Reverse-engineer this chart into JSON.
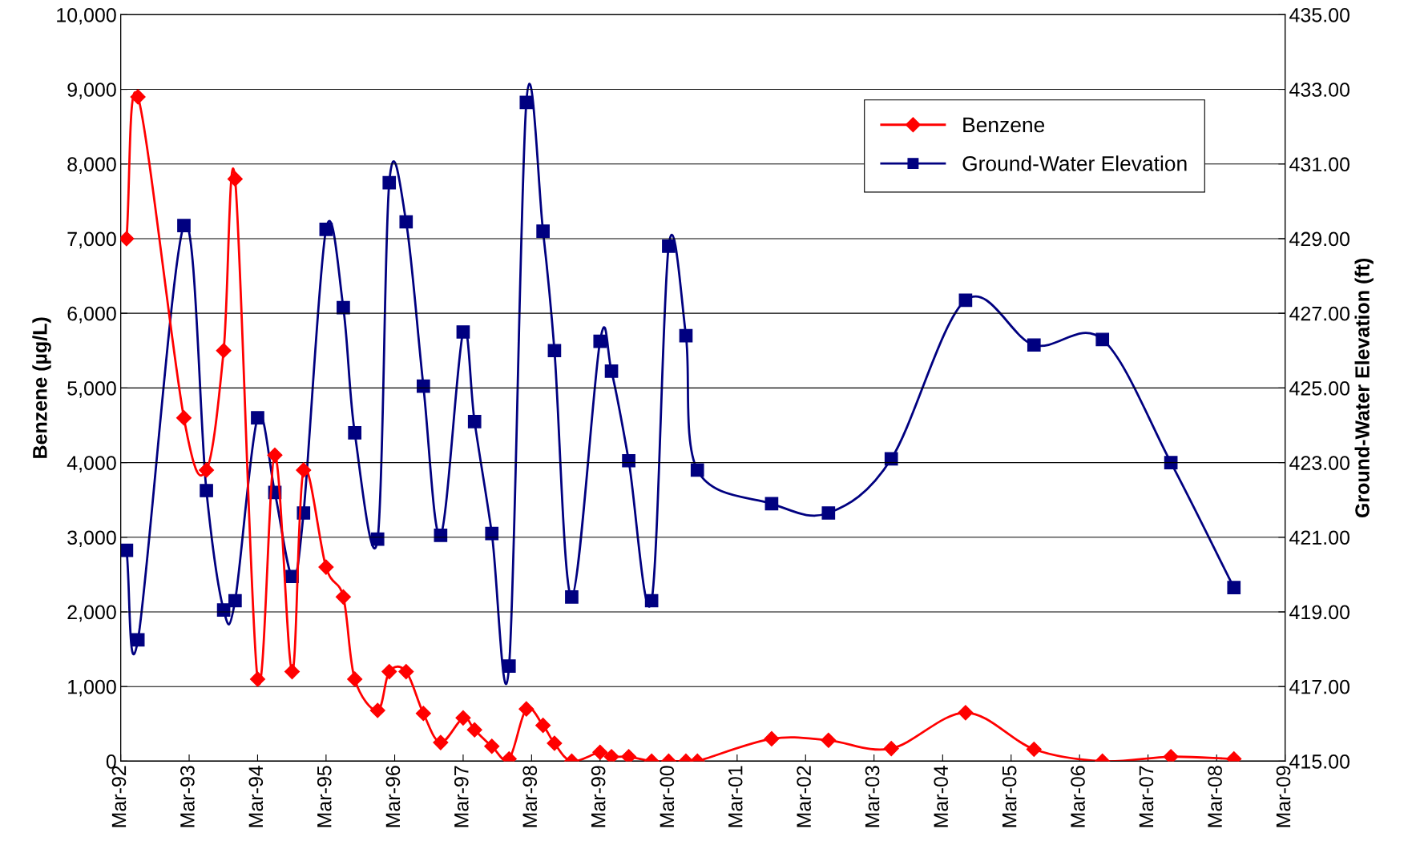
{
  "chart_data": {
    "type": "line",
    "x": [
      "1992-04",
      "1992-06",
      "1993-02",
      "1993-06",
      "1993-09",
      "1993-11",
      "1994-03",
      "1994-06",
      "1994-09",
      "1994-11",
      "1995-03",
      "1995-06",
      "1995-08",
      "1995-12",
      "1996-02",
      "1996-05",
      "1996-08",
      "1996-11",
      "1997-03",
      "1997-05",
      "1997-08",
      "1997-11",
      "1998-02",
      "1998-05",
      "1998-07",
      "1998-10",
      "1999-03",
      "1999-05",
      "1999-08",
      "1999-12",
      "2000-03",
      "2000-06",
      "2000-08",
      "2001-09",
      "2002-07",
      "2003-06",
      "2004-07",
      "2005-07",
      "2006-07",
      "2007-07",
      "2008-06"
    ],
    "series": [
      {
        "name": "Benzene",
        "color": "#ff0000",
        "marker": "diamond",
        "values": [
          7000,
          8900,
          4600,
          3900,
          5500,
          7800,
          1100,
          4100,
          1200,
          3900,
          2600,
          2200,
          1100,
          680,
          1200,
          1200,
          640,
          250,
          580,
          420,
          200,
          30,
          700,
          480,
          240,
          0,
          120,
          60,
          60,
          0,
          0,
          0,
          0,
          300,
          280,
          170,
          650,
          160,
          0,
          60,
          30
        ]
      },
      {
        "name": "Ground-Water Elevation",
        "color": "#000080",
        "marker": "square",
        "axis": "y2",
        "values": [
          420.65,
          418.25,
          429.35,
          422.25,
          419.05,
          419.3,
          424.2,
          422.2,
          419.95,
          421.65,
          429.25,
          427.15,
          423.8,
          420.95,
          430.5,
          429.45,
          425.05,
          421.05,
          426.5,
          424.1,
          421.1,
          417.55,
          432.65,
          429.2,
          426.0,
          419.4,
          426.25,
          425.45,
          423.05,
          419.3,
          428.8,
          426.4,
          422.8,
          421.9,
          421.65,
          423.1,
          427.35,
          426.15,
          426.3,
          423.0,
          419.65
        ]
      }
    ],
    "ylabel": "Benzene (µg/L)",
    "y2label": "Ground-Water Elevation (ft)",
    "xlim": [
      "1992-03",
      "2009-03"
    ],
    "xticks": [
      {
        "value": "1992-03",
        "label": "Mar-92"
      },
      {
        "value": "1993-03",
        "label": "Mar-93"
      },
      {
        "value": "1994-03",
        "label": "Mar-94"
      },
      {
        "value": "1995-03",
        "label": "Mar-95"
      },
      {
        "value": "1996-03",
        "label": "Mar-96"
      },
      {
        "value": "1997-03",
        "label": "Mar-97"
      },
      {
        "value": "1998-03",
        "label": "Mar-98"
      },
      {
        "value": "1999-03",
        "label": "Mar-99"
      },
      {
        "value": "2000-03",
        "label": "Mar-00"
      },
      {
        "value": "2001-03",
        "label": "Mar-01"
      },
      {
        "value": "2002-03",
        "label": "Mar-02"
      },
      {
        "value": "2003-03",
        "label": "Mar-03"
      },
      {
        "value": "2004-03",
        "label": "Mar-04"
      },
      {
        "value": "2005-03",
        "label": "Mar-05"
      },
      {
        "value": "2006-03",
        "label": "Mar-06"
      },
      {
        "value": "2007-03",
        "label": "Mar-07"
      },
      {
        "value": "2008-03",
        "label": "Mar-08"
      },
      {
        "value": "2009-03",
        "label": "Mar-09"
      }
    ],
    "ylim": [
      0,
      10000
    ],
    "yticks": [
      0,
      {
        "value": 1000,
        "label": "1,000"
      },
      {
        "value": 2000,
        "label": "2,000"
      },
      {
        "value": 3000,
        "label": "3,000"
      },
      {
        "value": 4000,
        "label": "4,000"
      },
      {
        "value": 5000,
        "label": "5,000"
      },
      {
        "value": 6000,
        "label": "6,000"
      },
      {
        "value": 7000,
        "label": "7,000"
      },
      {
        "value": 8000,
        "label": "8,000"
      },
      {
        "value": 9000,
        "label": "9,000"
      },
      {
        "value": 10000,
        "label": "10,000"
      }
    ],
    "y2lim": [
      415,
      435
    ],
    "y2ticks": [
      {
        "value": 415,
        "label": "415.00"
      },
      {
        "value": 417,
        "label": "417.00"
      },
      {
        "value": 419,
        "label": "419.00"
      },
      {
        "value": 421,
        "label": "421.00"
      },
      {
        "value": 423,
        "label": "423.00"
      },
      {
        "value": 425,
        "label": "425.00"
      },
      {
        "value": 427,
        "label": "427.00"
      },
      {
        "value": 429,
        "label": "429.00"
      },
      {
        "value": 431,
        "label": "431.00"
      },
      {
        "value": 433,
        "label": "433.00"
      },
      {
        "value": 435,
        "label": "435.00"
      }
    ],
    "grid": "y",
    "legend": "top right",
    "line_style": "solid"
  }
}
